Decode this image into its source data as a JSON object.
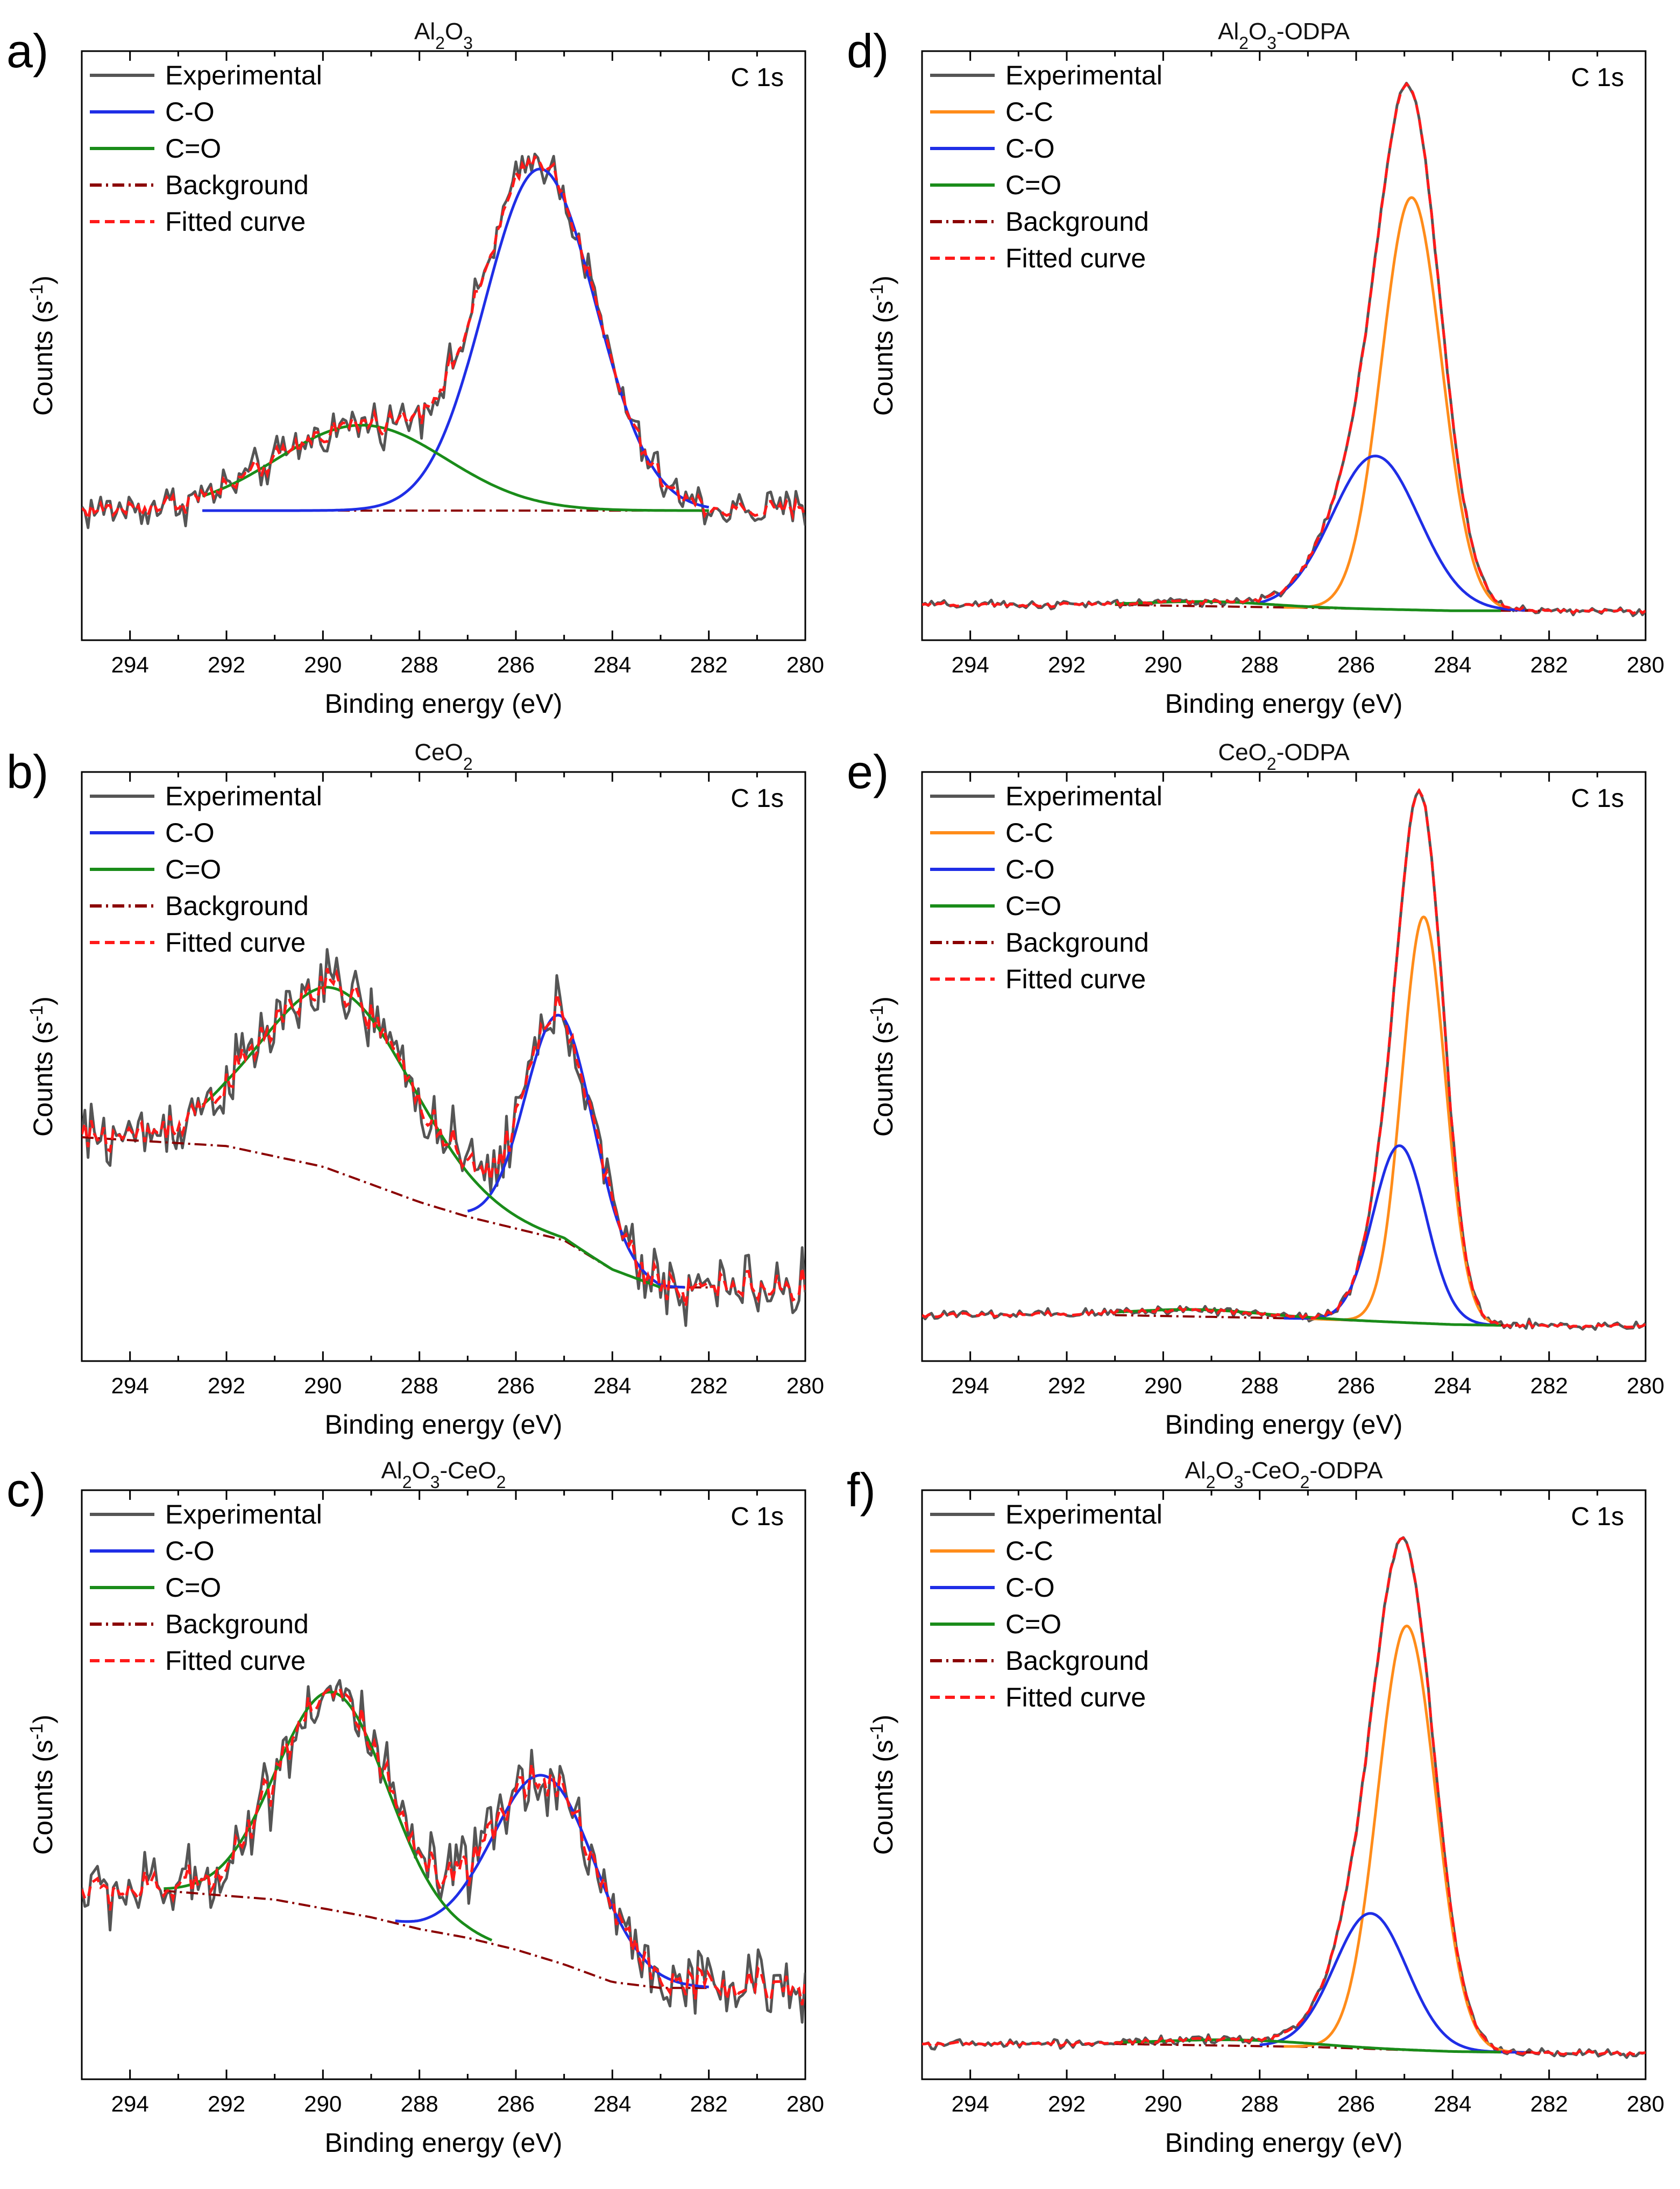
{
  "figure_description": "XPS C 1s spectra",
  "colors": {
    "experimental": "#555555",
    "C-C": "#ff8c1a",
    "C-O": "#1f2ee6",
    "C=O": "#1a8c1a",
    "background": "#8b0000",
    "fitted": "#ff1a1a"
  },
  "chart_data": [
    {
      "id": "a",
      "letter": "a)",
      "type": "line",
      "title": "Al2O3",
      "title_parts": [
        {
          "t": "Al"
        },
        {
          "t": "2",
          "sub": true
        },
        {
          "t": "O"
        },
        {
          "t": "3",
          "sub": true
        }
      ],
      "corner_label": "C 1s",
      "xlabel": "Binding energy (eV)",
      "ylabel": "Counts (s-1)",
      "xlim": [
        295,
        280
      ],
      "ylim": [
        0,
        100
      ],
      "xticks": [
        294,
        292,
        290,
        288,
        286,
        284,
        282,
        280
      ],
      "legend": [
        "Experimental",
        "C-O",
        "C=O",
        "Background",
        "Fitted curve"
      ],
      "background": {
        "x": [
          292.5,
          282
        ],
        "y": [
          22,
          22
        ]
      },
      "components": [
        {
          "name": "C-O",
          "center": 285.5,
          "amplitude": 58,
          "sigma": 1.15,
          "range": [
            292.5,
            282
          ]
        },
        {
          "name": "C=O",
          "center": 289.2,
          "amplitude": 14.5,
          "sigma": 1.75,
          "range": [
            292.5,
            282
          ]
        }
      ],
      "experimental_noise": 2.6,
      "experimental_baseline": 22
    },
    {
      "id": "b",
      "letter": "b)",
      "type": "line",
      "title": "CeO2",
      "title_parts": [
        {
          "t": "CeO"
        },
        {
          "t": "2",
          "sub": true
        }
      ],
      "corner_label": "C 1s",
      "xlabel": "Binding energy (eV)",
      "ylabel": "Counts (s-1)",
      "xlim": [
        295,
        280
      ],
      "ylim": [
        0,
        100
      ],
      "xticks": [
        294,
        292,
        290,
        288,
        286,
        284,
        282,
        280
      ],
      "legend": [
        "Experimental",
        "C-O",
        "C=O",
        "Background",
        "Fitted curve"
      ],
      "background": {
        "x": [
          295,
          292,
          290,
          288,
          287,
          286,
          285,
          284,
          283,
          282
        ],
        "y": [
          38,
          36.5,
          33,
          27,
          24.5,
          22.5,
          20.5,
          15.5,
          12.5,
          12.5
        ]
      },
      "components": [
        {
          "name": "C-O",
          "center": 285.1,
          "amplitude": 38,
          "sigma": 0.7,
          "range": [
            287,
            282.5
          ]
        },
        {
          "name": "C=O",
          "center": 289.7,
          "amplitude": 31,
          "sigma": 1.6,
          "range": [
            292.5,
            283
          ]
        }
      ],
      "experimental_noise": 4.2,
      "experimental_baseline": 12.5
    },
    {
      "id": "c",
      "letter": "c)",
      "type": "line",
      "title": "Al2O3-CeO2",
      "title_parts": [
        {
          "t": "Al"
        },
        {
          "t": "2",
          "sub": true
        },
        {
          "t": "O"
        },
        {
          "t": "3",
          "sub": true
        },
        {
          "t": "-CeO"
        },
        {
          "t": "2",
          "sub": true
        }
      ],
      "corner_label": "C 1s",
      "xlabel": "Binding energy (eV)",
      "ylabel": "Counts (s-1)",
      "xlim": [
        295,
        280
      ],
      "ylim": [
        0,
        100
      ],
      "xticks": [
        294,
        292,
        290,
        288,
        286,
        284,
        282,
        280
      ],
      "legend": [
        "Experimental",
        "C-O",
        "C=O",
        "Background",
        "Fitted curve"
      ],
      "background": {
        "x": [
          293.3,
          291,
          289,
          288,
          287,
          286,
          285,
          284,
          283,
          282
        ],
        "y": [
          32,
          30.5,
          27.5,
          25.5,
          24,
          22,
          19.5,
          16.5,
          15.5,
          15.5
        ]
      },
      "components": [
        {
          "name": "C-O",
          "center": 285.4,
          "amplitude": 31,
          "sigma": 1.05,
          "range": [
            288.5,
            282
          ]
        },
        {
          "name": "C=O",
          "center": 289.8,
          "amplitude": 37,
          "sigma": 1.15,
          "range": [
            293.3,
            286.5
          ]
        }
      ],
      "experimental_noise": 4.5,
      "experimental_baseline": 15.5
    },
    {
      "id": "d",
      "letter": "d)",
      "type": "line",
      "title": "Al2O3-ODPA",
      "title_parts": [
        {
          "t": "Al"
        },
        {
          "t": "2",
          "sub": true
        },
        {
          "t": "O"
        },
        {
          "t": "3",
          "sub": true
        },
        {
          "t": "-ODPA"
        }
      ],
      "corner_label": "C 1s",
      "xlabel": "Binding energy (eV)",
      "ylabel": "Counts (s-1)",
      "xlim": [
        295,
        280
      ],
      "ylim": [
        0,
        100
      ],
      "xticks": [
        294,
        292,
        290,
        288,
        286,
        284,
        282,
        280
      ],
      "legend": [
        "Experimental",
        "C-C",
        "C-O",
        "C=O",
        "Background",
        "Fitted curve"
      ],
      "background": {
        "x": [
          291,
          287,
          284,
          282
        ],
        "y": [
          6,
          5.5,
          5,
          5
        ]
      },
      "components": [
        {
          "name": "C-C",
          "center": 284.85,
          "amplitude": 70,
          "sigma": 0.62,
          "range": [
            287.5,
            282.5
          ]
        },
        {
          "name": "C-O",
          "center": 285.6,
          "amplitude": 26,
          "sigma": 0.9,
          "range": [
            288,
            282.5
          ]
        },
        {
          "name": "C=O",
          "center": 289,
          "amplitude": 0.8,
          "sigma": 1.2,
          "range": [
            291,
            283
          ]
        }
      ],
      "experimental_noise": 0.5,
      "experimental_baseline": 5
    },
    {
      "id": "e",
      "letter": "e)",
      "type": "line",
      "title": "CeO2-ODPA",
      "title_parts": [
        {
          "t": "CeO"
        },
        {
          "t": "2",
          "sub": true
        },
        {
          "t": "-ODPA"
        }
      ],
      "corner_label": "C 1s",
      "xlabel": "Binding energy (eV)",
      "ylabel": "Counts (s-1)",
      "xlim": [
        295,
        280
      ],
      "ylim": [
        0,
        100
      ],
      "xticks": [
        294,
        292,
        290,
        288,
        286,
        284,
        282,
        280
      ],
      "legend": [
        "Experimental",
        "C-C",
        "C-O",
        "C=O",
        "Background",
        "Fitted curve"
      ],
      "background": {
        "x": [
          291,
          287,
          284,
          282.5
        ],
        "y": [
          7.8,
          7.2,
          6.2,
          6
        ]
      },
      "components": [
        {
          "name": "C-C",
          "center": 284.6,
          "amplitude": 69,
          "sigma": 0.45,
          "range": [
            287,
            283
          ]
        },
        {
          "name": "C-O",
          "center": 285.1,
          "amplitude": 30,
          "sigma": 0.55,
          "range": [
            287.5,
            283
          ]
        },
        {
          "name": "C=O",
          "center": 289.3,
          "amplitude": 1.2,
          "sigma": 1.3,
          "range": [
            291,
            283
          ]
        }
      ],
      "experimental_noise": 0.6,
      "experimental_baseline": 6
    },
    {
      "id": "f",
      "letter": "f)",
      "type": "line",
      "title": "Al2O3-CeO2-ODPA",
      "title_parts": [
        {
          "t": "Al"
        },
        {
          "t": "2",
          "sub": true
        },
        {
          "t": "O"
        },
        {
          "t": "3",
          "sub": true
        },
        {
          "t": "-CeO"
        },
        {
          "t": "2",
          "sub": true
        },
        {
          "t": "-ODPA"
        }
      ],
      "corner_label": "C 1s",
      "xlabel": "Binding energy (eV)",
      "ylabel": "Counts (s-1)",
      "xlim": [
        295,
        280
      ],
      "ylim": [
        0,
        100
      ],
      "xticks": [
        294,
        292,
        290,
        288,
        286,
        284,
        282,
        280
      ],
      "legend": [
        "Experimental",
        "C-C",
        "C-O",
        "C=O",
        "Background",
        "Fitted curve"
      ],
      "background": {
        "x": [
          291,
          287,
          284,
          282
        ],
        "y": [
          6,
          5.5,
          4.7,
          4.5
        ]
      },
      "components": [
        {
          "name": "C-C",
          "center": 284.95,
          "amplitude": 72,
          "sigma": 0.6,
          "range": [
            287.5,
            282.5
          ]
        },
        {
          "name": "C-O",
          "center": 285.7,
          "amplitude": 23,
          "sigma": 0.75,
          "range": [
            288,
            282.5
          ]
        },
        {
          "name": "C=O",
          "center": 288.5,
          "amplitude": 1,
          "sigma": 1.5,
          "range": [
            291,
            283
          ]
        }
      ],
      "experimental_noise": 0.5,
      "experimental_baseline": 4.5
    }
  ]
}
